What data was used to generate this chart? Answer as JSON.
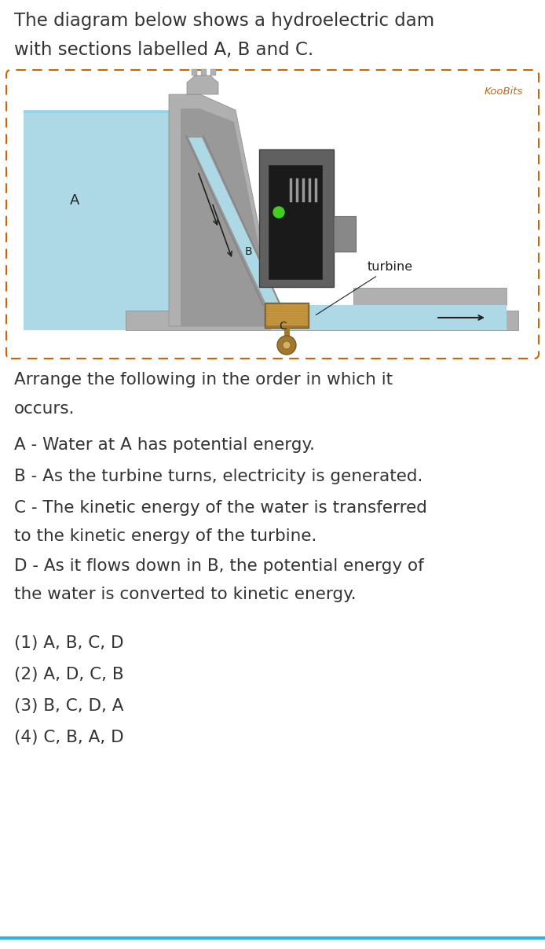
{
  "bg_color": "#ffffff",
  "title_line1": "The diagram below shows a hydroelectric dam",
  "title_line2": "with sections labelled A, B and C.",
  "koobits_label": "KooBits",
  "koobits_color": "#cd6600",
  "question_line1": "Arrange the following in the order in which it",
  "question_line2": "occurs.",
  "item_A": "A - Water at A has potential energy.",
  "item_B": "B - As the turbine turns, electricity is generated.",
  "item_C_1": "C - The kinetic energy of the water is transferred",
  "item_C_2": "to the kinetic energy of the turbine.",
  "item_D_1": "D - As it flows down in B, the potential energy of",
  "item_D_2": "the water is converted to kinetic energy.",
  "option1": "(1) A, B, C, D",
  "option2": "(2) A, D, C, B",
  "option3": "(3) B, C, D, A",
  "option4": "(4) C, B, A, D",
  "water_color": "#add8e6",
  "water_dark": "#7ec8e3",
  "dam_color": "#b0b0b0",
  "dam_dark": "#888888",
  "dam_mid": "#999999",
  "box_border_color": "#cd6600",
  "text_color": "#333333",
  "turbine_brown": "#a07830",
  "turbine_dark": "#7a5c20",
  "generator_gray": "#606060",
  "generator_dark": "#404040",
  "panel_black": "#1a1a1a",
  "green_light": "#44cc22",
  "right_water": "#add8e6",
  "bottom_line_color": "#29b6e6"
}
